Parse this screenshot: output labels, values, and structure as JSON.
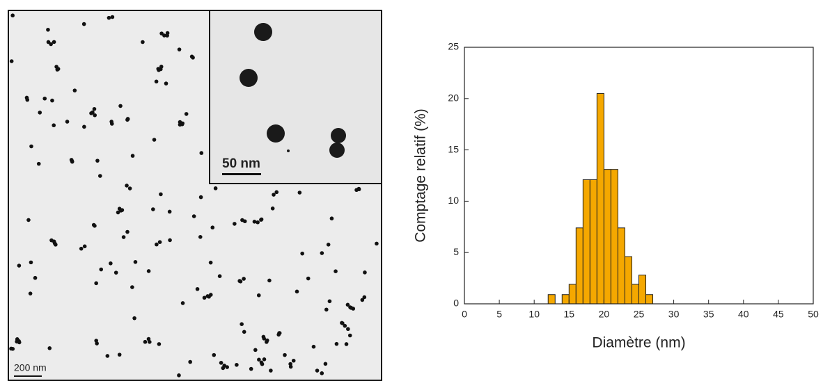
{
  "image": {
    "scale_bar": "200 nm",
    "inset_scale_bar": "50 nm"
  },
  "chart_data": {
    "type": "histogram",
    "x_label": "Diamètre (nm)",
    "y_label": "Comptage relatif (%)",
    "bins": [
      12,
      13,
      14,
      15,
      16,
      17,
      18,
      19,
      20,
      21,
      22,
      23,
      24,
      25,
      26,
      27
    ],
    "values": [
      0.9,
      0,
      0.9,
      1.9,
      7.4,
      12.1,
      12.1,
      20.5,
      13.1,
      13.1,
      7.4,
      4.6,
      1.9,
      2.8,
      0.9
    ],
    "color": "#f5a800",
    "xlim": [
      0,
      50
    ],
    "xticks": [
      0,
      5,
      10,
      15,
      20,
      25,
      30,
      35,
      40,
      45,
      50
    ],
    "ylim": [
      0,
      25
    ],
    "yticks": [
      0,
      5,
      10,
      15,
      20,
      25
    ]
  }
}
